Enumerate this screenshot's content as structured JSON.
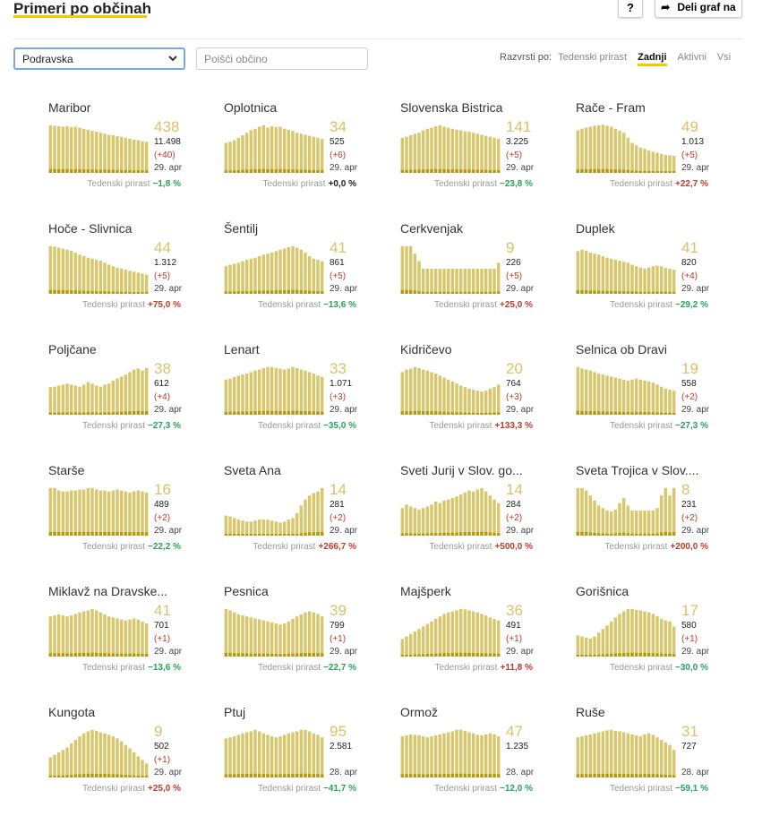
{
  "header": {
    "title": "Primeri po občinah",
    "help_label": "?",
    "share_label": "Deli graf na"
  },
  "controls": {
    "region_value": "Podravska",
    "search_placeholder": "Poišči občino",
    "sort_label": "Razvrsti po:",
    "sort_options": [
      "Tedenski prirast",
      "Zadnji",
      "Aktivni",
      "Vsi"
    ],
    "sort_active": "Zadnji"
  },
  "colors": {
    "bar": "#d9c76e",
    "bar_dark": "#b59a10",
    "accent": "#f5c800",
    "positive_growth": "#c0392b",
    "negative_growth": "#27a35b"
  },
  "chart_data": [
    {
      "type": "bar",
      "name": "Maribor",
      "big": "438",
      "total": "11.498",
      "delta": "(+40)",
      "date": "29. apr",
      "growth_label": "Tedenski prirast",
      "growth": "−1,8 %",
      "growth_sign": "neg",
      "values": [
        95,
        94,
        93,
        92,
        93,
        91,
        92,
        90,
        88,
        86,
        84,
        82,
        80,
        78,
        76,
        75,
        73,
        72,
        70,
        68,
        66,
        65,
        63,
        62
      ]
    },
    {
      "type": "bar",
      "name": "Oplotnica",
      "big": "34",
      "total": "525",
      "delta": "(+6)",
      "date": "29. apr",
      "growth_label": "Tedenski prirast",
      "growth": "+0,0 %",
      "growth_sign": "zero",
      "values": [
        60,
        62,
        65,
        70,
        75,
        80,
        85,
        88,
        92,
        95,
        90,
        93,
        91,
        92,
        88,
        86,
        84,
        80,
        78,
        76,
        74,
        72,
        70,
        68
      ]
    },
    {
      "type": "bar",
      "name": "Slovenska Bistrica",
      "big": "141",
      "total": "3.225",
      "delta": "(+5)",
      "date": "29. apr",
      "growth_label": "Tedenski prirast",
      "growth": "−23,8 %",
      "growth_sign": "neg",
      "values": [
        70,
        72,
        75,
        78,
        80,
        85,
        88,
        90,
        93,
        95,
        92,
        90,
        88,
        86,
        85,
        83,
        82,
        80,
        78,
        76,
        74,
        72,
        70,
        68
      ]
    },
    {
      "type": "bar",
      "name": "Rače - Fram",
      "big": "49",
      "total": "1.013",
      "delta": "(+5)",
      "date": "29. apr",
      "growth_label": "Tedenski prirast",
      "growth": "+22,7 %",
      "growth_sign": "pos",
      "values": [
        85,
        88,
        90,
        92,
        94,
        95,
        96,
        94,
        92,
        88,
        84,
        80,
        70,
        60,
        55,
        50,
        48,
        45,
        42,
        40,
        38,
        36,
        35,
        34
      ]
    },
    {
      "type": "bar",
      "name": "Hoče - Slivnica",
      "big": "44",
      "total": "1.312",
      "delta": "(+5)",
      "date": "29. apr",
      "growth_label": "Tedenski prirast",
      "growth": "+75,0 %",
      "growth_sign": "pos",
      "values": [
        95,
        94,
        92,
        90,
        88,
        86,
        82,
        78,
        75,
        72,
        70,
        68,
        66,
        62,
        58,
        55,
        52,
        50,
        48,
        46,
        44,
        42,
        40,
        38
      ]
    },
    {
      "type": "bar",
      "name": "Šentilj",
      "big": "41",
      "total": "861",
      "delta": "(+5)",
      "date": "29. apr",
      "growth_label": "Tedenski prirast",
      "growth": "−13,6 %",
      "growth_sign": "neg",
      "values": [
        55,
        58,
        60,
        62,
        65,
        68,
        70,
        72,
        75,
        78,
        80,
        82,
        85,
        88,
        90,
        93,
        95,
        92,
        88,
        82,
        75,
        70,
        68,
        65
      ]
    },
    {
      "type": "bar",
      "name": "Cerkvenjak",
      "big": "9",
      "total": "226",
      "delta": "(+5)",
      "date": "29. apr",
      "growth_label": "Tedenski prirast",
      "growth": "+25,0 %",
      "growth_sign": "pos",
      "values": [
        95,
        95,
        95,
        80,
        65,
        50,
        50,
        50,
        50,
        50,
        50,
        50,
        50,
        50,
        50,
        50,
        50,
        50,
        50,
        50,
        50,
        50,
        50,
        62
      ]
    },
    {
      "type": "bar",
      "name": "Duplek",
      "big": "41",
      "total": "820",
      "delta": "(+4)",
      "date": "29. apr",
      "growth_label": "Tedenski prirast",
      "growth": "−29,2 %",
      "growth_sign": "neg",
      "values": [
        85,
        88,
        86,
        82,
        80,
        78,
        75,
        72,
        70,
        68,
        66,
        64,
        62,
        58,
        55,
        52,
        50,
        52,
        55,
        56,
        55,
        52,
        50,
        48
      ]
    },
    {
      "type": "bar",
      "name": "Poljčane",
      "big": "38",
      "total": "612",
      "delta": "(+4)",
      "date": "29. apr",
      "growth_label": "Tedenski prirast",
      "growth": "−27,3 %",
      "growth_sign": "neg",
      "values": [
        55,
        56,
        58,
        60,
        62,
        60,
        58,
        56,
        60,
        65,
        62,
        58,
        56,
        60,
        62,
        68,
        72,
        76,
        80,
        85,
        90,
        92,
        88,
        93
      ]
    },
    {
      "type": "bar",
      "name": "Lenart",
      "big": "33",
      "total": "1.071",
      "delta": "(+3)",
      "date": "29. apr",
      "growth_label": "Tedenski prirast",
      "growth": "−35,0 %",
      "growth_sign": "neg",
      "values": [
        70,
        72,
        75,
        78,
        80,
        82,
        85,
        88,
        90,
        93,
        95,
        95,
        93,
        92,
        90,
        92,
        95,
        93,
        90,
        88,
        85,
        82,
        78,
        75
      ]
    },
    {
      "type": "bar",
      "name": "Kidričevo",
      "big": "20",
      "total": "764",
      "delta": "(+3)",
      "date": "29. apr",
      "growth_label": "Tedenski prirast",
      "growth": "+133,3 %",
      "growth_sign": "pos",
      "values": [
        85,
        90,
        92,
        95,
        93,
        90,
        88,
        85,
        82,
        78,
        74,
        70,
        66,
        62,
        58,
        55,
        52,
        50,
        48,
        46,
        48,
        52,
        55,
        60
      ]
    },
    {
      "type": "bar",
      "name": "Selnica ob Dravi",
      "big": "19",
      "total": "558",
      "delta": "(+2)",
      "date": "29. apr",
      "growth_label": "Tedenski prirast",
      "growth": "−27,3 %",
      "growth_sign": "neg",
      "values": [
        95,
        92,
        90,
        88,
        85,
        82,
        80,
        78,
        76,
        74,
        72,
        70,
        68,
        70,
        72,
        70,
        68,
        66,
        64,
        60,
        56,
        52,
        50,
        48
      ]
    },
    {
      "type": "bar",
      "name": "Starše",
      "big": "16",
      "total": "489",
      "delta": "(+2)",
      "date": "29. apr",
      "growth_label": "Tedenski prirast",
      "growth": "−22,2 %",
      "growth_sign": "neg",
      "values": [
        95,
        95,
        90,
        88,
        88,
        90,
        90,
        92,
        92,
        95,
        95,
        92,
        90,
        90,
        88,
        90,
        92,
        90,
        88,
        86,
        88,
        90,
        88,
        86
      ]
    },
    {
      "type": "bar",
      "name": "Sveta Ana",
      "big": "14",
      "total": "281",
      "delta": "(+2)",
      "date": "29. apr",
      "growth_label": "Tedenski prirast",
      "growth": "+266,7 %",
      "growth_sign": "pos",
      "values": [
        40,
        38,
        35,
        32,
        30,
        28,
        28,
        30,
        32,
        32,
        32,
        30,
        28,
        26,
        28,
        32,
        35,
        45,
        60,
        72,
        80,
        85,
        88,
        95
      ]
    },
    {
      "type": "bar",
      "name": "Sveti Jurij v Slov. go...",
      "big": "14",
      "total": "284",
      "delta": "(+2)",
      "date": "29. apr",
      "growth_label": "Tedenski prirast",
      "growth": "+500,0 %",
      "growth_sign": "pos",
      "values": [
        55,
        62,
        58,
        55,
        52,
        55,
        58,
        62,
        68,
        65,
        70,
        72,
        75,
        78,
        82,
        86,
        90,
        88,
        92,
        95,
        88,
        80,
        72,
        65
      ]
    },
    {
      "type": "bar",
      "name": "Sveta Trojica v Slov....",
      "big": "8",
      "total": "231",
      "delta": "(+2)",
      "date": "29. apr",
      "growth_label": "Tedenski prirast",
      "growth": "+200,0 %",
      "growth_sign": "pos",
      "values": [
        95,
        95,
        90,
        80,
        70,
        60,
        55,
        50,
        48,
        52,
        65,
        75,
        60,
        50,
        50,
        50,
        50,
        50,
        50,
        55,
        80,
        95,
        80,
        95
      ]
    },
    {
      "type": "bar",
      "name": "Miklavž na Dravske...",
      "big": "41",
      "total": "701",
      "delta": "(+1)",
      "date": "29. apr",
      "growth_label": "Tedenski prirast",
      "growth": "−13,6 %",
      "growth_sign": "neg",
      "values": [
        80,
        82,
        84,
        82,
        80,
        82,
        85,
        88,
        90,
        92,
        95,
        92,
        88,
        84,
        80,
        78,
        76,
        74,
        72,
        74,
        76,
        74,
        70,
        66
      ]
    },
    {
      "type": "bar",
      "name": "Pesnica",
      "big": "39",
      "total": "799",
      "delta": "(+1)",
      "date": "29. apr",
      "growth_label": "Tedenski prirast",
      "growth": "−22,7 %",
      "growth_sign": "neg",
      "values": [
        95,
        92,
        88,
        84,
        82,
        80,
        78,
        76,
        74,
        72,
        70,
        68,
        66,
        64,
        66,
        70,
        75,
        80,
        84,
        88,
        90,
        88,
        85,
        80
      ]
    },
    {
      "type": "bar",
      "name": "Majšperk",
      "big": "36",
      "total": "491",
      "delta": "(+1)",
      "date": "29. apr",
      "growth_label": "Tedenski prirast",
      "growth": "+11,8 %",
      "growth_sign": "pos",
      "values": [
        35,
        40,
        45,
        50,
        55,
        60,
        65,
        70,
        75,
        80,
        85,
        88,
        90,
        92,
        95,
        94,
        92,
        90,
        88,
        85,
        82,
        78,
        75,
        72
      ]
    },
    {
      "type": "bar",
      "name": "Gorišnica",
      "big": "17",
      "total": "580",
      "delta": "(+1)",
      "date": "29. apr",
      "growth_label": "Tedenski prirast",
      "growth": "−30,0 %",
      "growth_sign": "neg",
      "values": [
        42,
        40,
        38,
        36,
        40,
        48,
        55,
        62,
        70,
        78,
        85,
        90,
        95,
        95,
        93,
        92,
        90,
        88,
        85,
        80,
        75,
        72,
        70,
        60
      ]
    },
    {
      "type": "bar",
      "name": "Kungota",
      "big": "9",
      "total": "502",
      "delta": "(+1)",
      "date": "29. apr",
      "growth_label": "Tedenski prirast",
      "growth": "+25,0 %",
      "growth_sign": "pos",
      "values": [
        40,
        45,
        50,
        55,
        60,
        68,
        75,
        82,
        88,
        92,
        95,
        93,
        90,
        88,
        85,
        82,
        78,
        72,
        65,
        58,
        50,
        42,
        35,
        28
      ]
    },
    {
      "type": "bar",
      "name": "Ptuj",
      "big": "95",
      "total": "2.581",
      "delta": "",
      "date": "28. apr",
      "growth_label": "Tedenski prirast",
      "growth": "−41,7 %",
      "growth_sign": "neg",
      "values": [
        78,
        80,
        82,
        85,
        88,
        90,
        92,
        95,
        92,
        88,
        85,
        82,
        80,
        82,
        85,
        88,
        90,
        92,
        95,
        95,
        92,
        88,
        85,
        80
      ]
    },
    {
      "type": "bar",
      "name": "Ormož",
      "big": "47",
      "total": "1.235",
      "delta": "",
      "date": "28. apr",
      "growth_label": "Tedenski prirast",
      "growth": "−12,0 %",
      "growth_sign": "neg",
      "values": [
        82,
        84,
        86,
        85,
        84,
        82,
        80,
        82,
        84,
        86,
        88,
        90,
        92,
        95,
        95,
        93,
        90,
        88,
        85,
        84,
        86,
        88,
        86,
        82
      ]
    },
    {
      "type": "bar",
      "name": "Ruše",
      "big": "31",
      "total": "727",
      "delta": "",
      "date": "28. apr",
      "growth_label": "Tedenski prirast",
      "growth": "−59,1 %",
      "growth_sign": "neg",
      "values": [
        80,
        82,
        84,
        86,
        88,
        90,
        92,
        94,
        95,
        93,
        92,
        90,
        88,
        86,
        84,
        82,
        86,
        88,
        85,
        80,
        75,
        70,
        65,
        55
      ]
    }
  ]
}
